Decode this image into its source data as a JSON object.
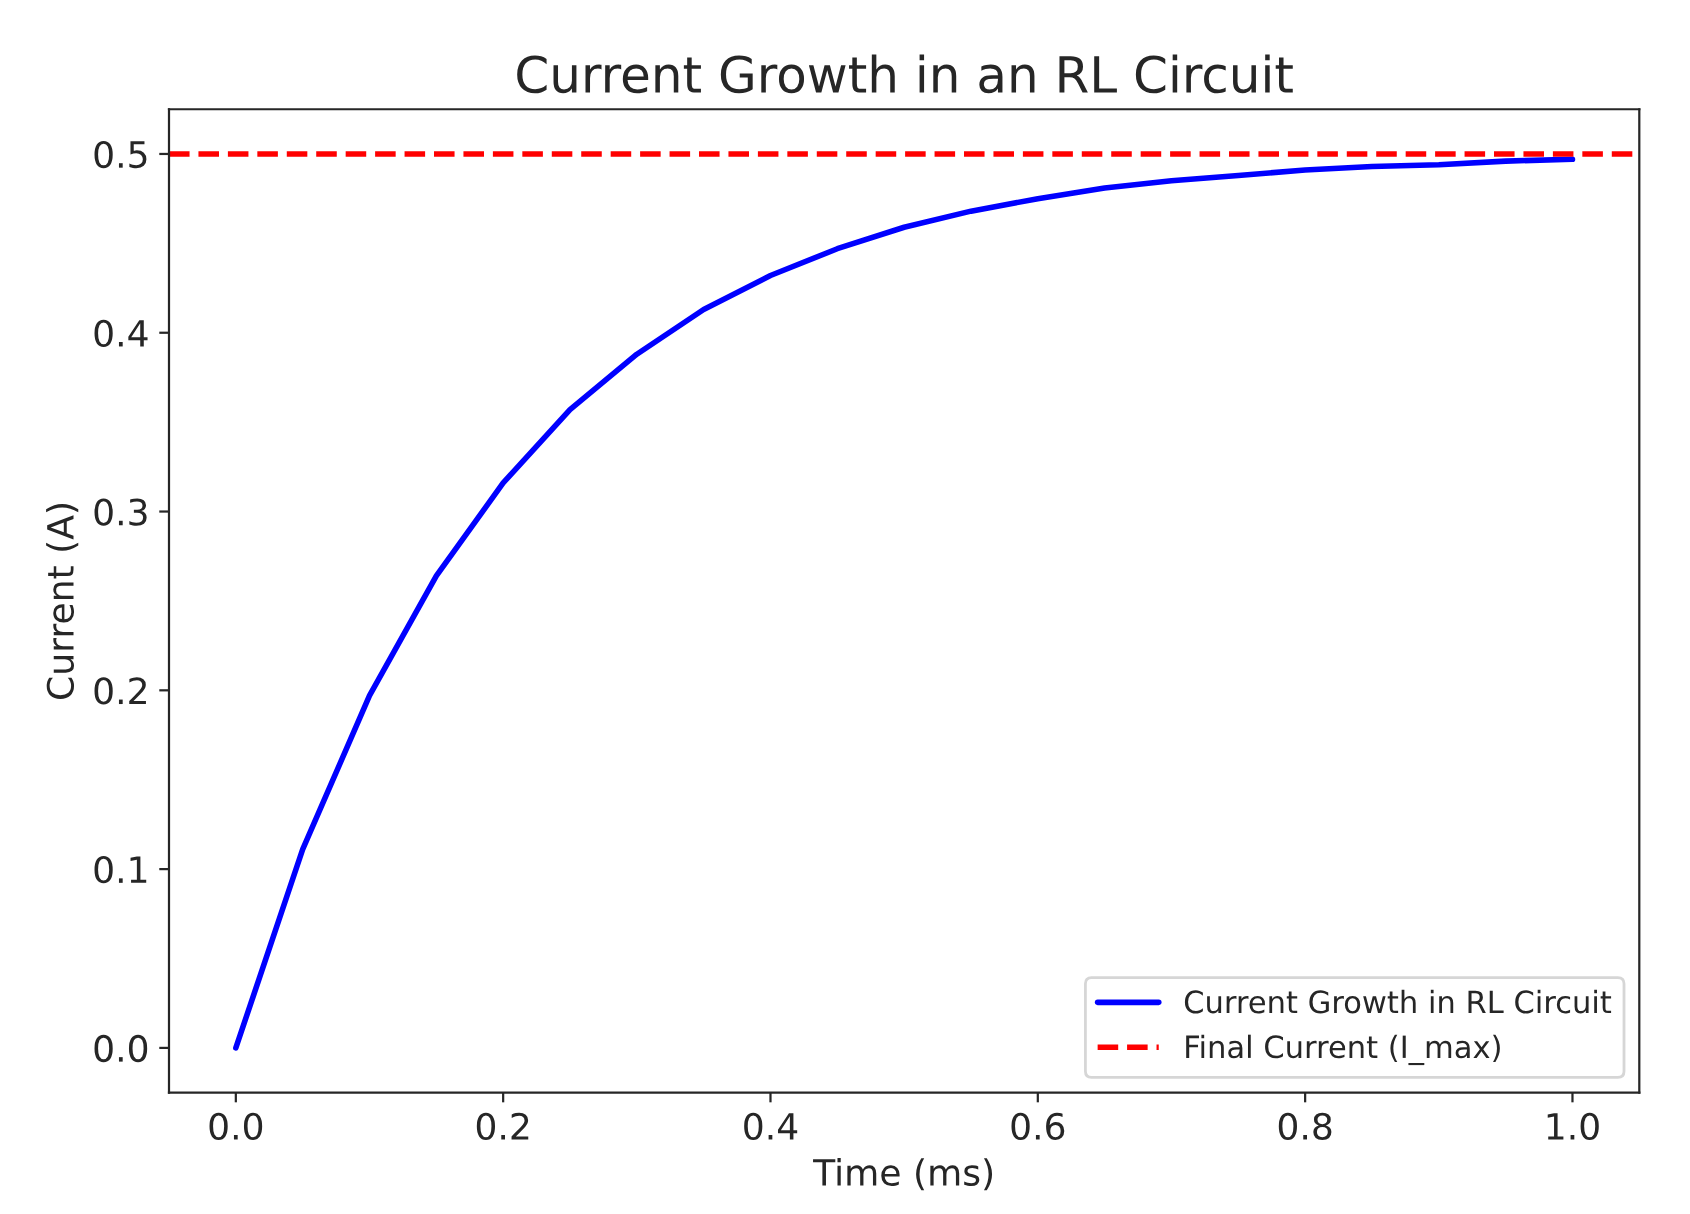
{
  "chart_data": {
    "type": "line",
    "title": "Current Growth in an RL Circuit",
    "xlabel": "Time (ms)",
    "ylabel": "Current (A)",
    "x": [
      0,
      0.05,
      0.1,
      0.15,
      0.2,
      0.25,
      0.3,
      0.35,
      0.4,
      0.45,
      0.5,
      0.55,
      0.6,
      0.65,
      0.7,
      0.75,
      0.8,
      0.85,
      0.9,
      0.95,
      1.0
    ],
    "series": [
      {
        "name": "Current Growth in RL Circuit",
        "color": "#0000ff",
        "values": [
          0,
          0.111,
          0.197,
          0.264,
          0.316,
          0.357,
          0.388,
          0.413,
          0.432,
          0.447,
          0.459,
          0.468,
          0.475,
          0.481,
          0.485,
          0.488,
          0.491,
          0.493,
          0.494,
          0.496,
          0.497
        ]
      }
    ],
    "ref_lines": [
      {
        "axis": "y",
        "value": 0.5,
        "label": "Final Current (I_max)",
        "color": "#ff0000",
        "line_style": "dashed"
      }
    ],
    "xlim": [
      -0.05,
      1.05
    ],
    "ylim": [
      -0.025,
      0.525
    ],
    "xticks": [
      {
        "value": 0,
        "label": "0.0"
      },
      0.2,
      0.4,
      0.6,
      0.8,
      {
        "value": 1,
        "label": "1.0"
      }
    ],
    "yticks": [
      {
        "value": 0,
        "label": "0.0"
      },
      0.1,
      0.2,
      0.3,
      0.4,
      0.5
    ],
    "grid": false,
    "legend": "bottom right",
    "line_style": "solid",
    "marker": "none"
  }
}
